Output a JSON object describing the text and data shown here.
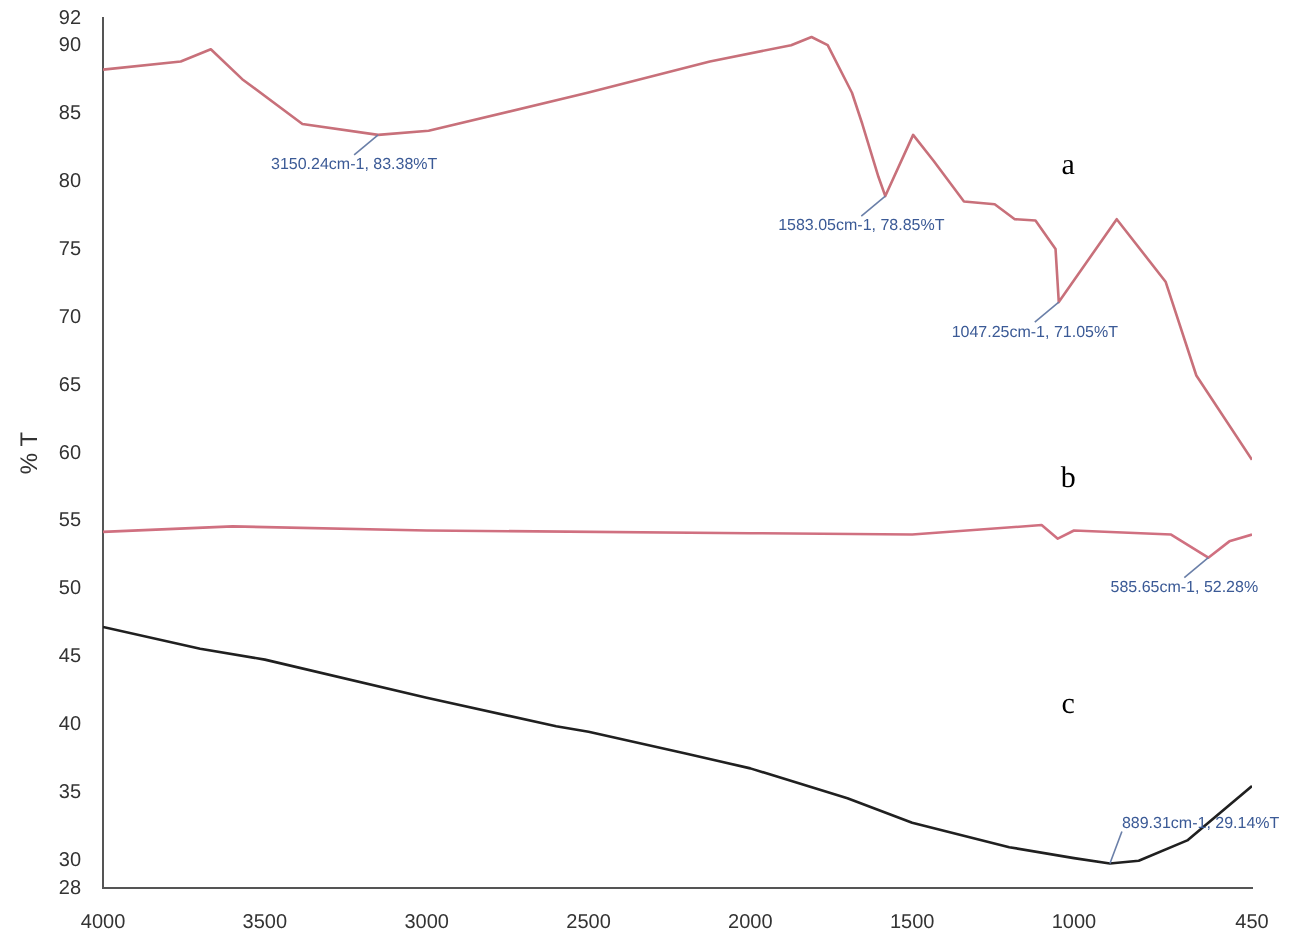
{
  "chart_data": {
    "type": "line",
    "ylabel": "% T",
    "xlim": [
      4000,
      450
    ],
    "xticks": [
      4000,
      3500,
      3000,
      2500,
      2000,
      1500,
      1000,
      450
    ],
    "ylim": [
      28,
      92
    ],
    "yticks": [
      28,
      30,
      35,
      40,
      45,
      50,
      55,
      60,
      65,
      70,
      75,
      80,
      85,
      90,
      92
    ],
    "grid": false,
    "legend": false,
    "marker": "none",
    "line_style": "solid",
    "series": [
      {
        "color": "#c8707a",
        "x": [
          4000,
          3760,
          3667,
          3570,
          3384,
          3150,
          2994,
          2503,
          2125,
          1874,
          1811,
          1761,
          1686,
          1654,
          1604,
          1583,
          1497,
          1434,
          1340,
          1245,
          1183,
          1119,
          1057,
          1047,
          868,
          717,
          622,
          450
        ],
        "values": [
          88.2,
          88.8,
          89.7,
          87.5,
          84.2,
          83.4,
          83.7,
          86.5,
          88.8,
          90,
          90.6,
          90,
          86.5,
          84.2,
          80.3,
          78.9,
          83.4,
          81.5,
          78.5,
          78.3,
          77.2,
          77.1,
          75,
          71.1,
          77.2,
          72.6,
          65.7,
          59.5
        ]
      },
      {
        "color": "#d07080",
        "x": [
          4000,
          3600,
          3000,
          2000,
          1500,
          1100,
          1050,
          1000,
          700,
          585,
          520,
          450
        ],
        "values": [
          54.2,
          54.6,
          54.3,
          54.1,
          54,
          54.7,
          53.7,
          54.3,
          54,
          52.3,
          53.5,
          54
        ]
      },
      {
        "color": "#202020",
        "x": [
          4000,
          3700,
          3500,
          3000,
          2600,
          2500,
          2200,
          2000,
          1700,
          1500,
          1200,
          1000,
          889,
          800,
          650,
          450
        ],
        "values": [
          47.2,
          45.6,
          44.8,
          42,
          39.9,
          39.5,
          37.9,
          36.8,
          34.6,
          32.8,
          31,
          30.2,
          29.8,
          30,
          31.5,
          35.5
        ]
      }
    ],
    "annotations": [
      {
        "text": "3150.24cm-1, 83.38%T",
        "x": 3150,
        "y": 83.4
      },
      {
        "text": "1583.05cm-1, 78.85%T",
        "x": 1583,
        "y": 78.9
      },
      {
        "text": "1047.25cm-1, 71.05%T",
        "x": 1047,
        "y": 71.1
      },
      {
        "text": "585.65cm-1, 52.28%",
        "x": 585,
        "y": 52.3
      },
      {
        "text": "889.31cm-1, 29.14%T",
        "x": 889,
        "y": 29.8
      },
      "a",
      "b",
      "c"
    ]
  }
}
